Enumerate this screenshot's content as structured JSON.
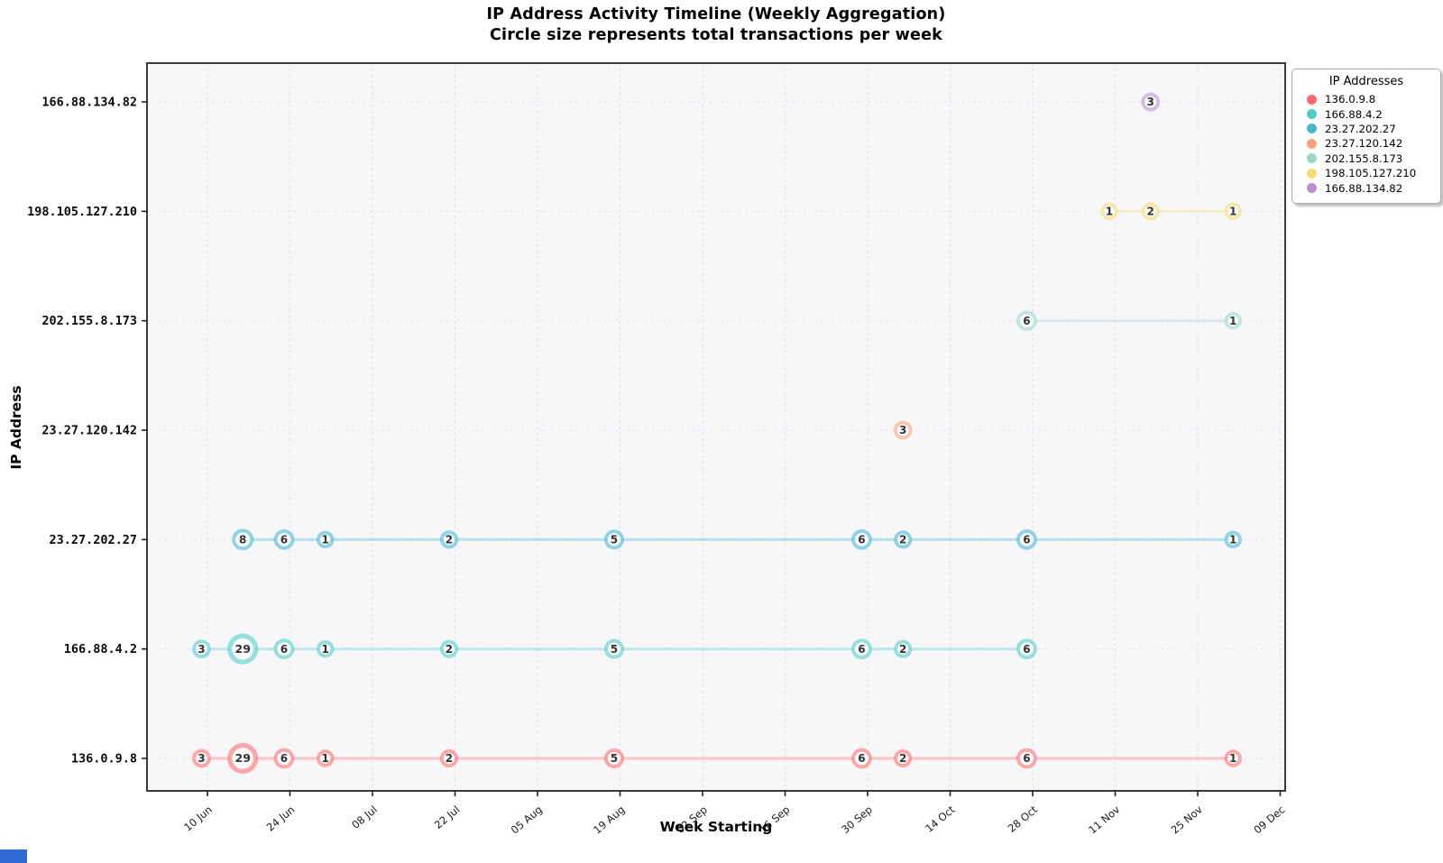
{
  "title": "IP Address Activity Timeline (Weekly Aggregation)",
  "subtitle": "Circle size represents total transactions per week",
  "xlabel": "Week Starting",
  "ylabel": "IP Address",
  "legend": {
    "title": "IP Addresses",
    "entries": [
      {
        "label": "136.0.9.8",
        "color": "#FF6B6B"
      },
      {
        "label": "166.88.4.2",
        "color": "#4ECDC4"
      },
      {
        "label": "23.27.202.27",
        "color": "#45B7D1"
      },
      {
        "label": "23.27.120.142",
        "color": "#FFA07A"
      },
      {
        "label": "202.155.8.173",
        "color": "#98D8C8"
      },
      {
        "label": "198.105.127.210",
        "color": "#F7DC6F"
      },
      {
        "label": "166.88.134.82",
        "color": "#BB8FCE"
      }
    ]
  },
  "chart_data": {
    "type": "scatter",
    "title": "IP Address Activity Timeline (Weekly Aggregation)",
    "subtitle": "Circle size represents total transactions per week",
    "xlabel": "Week Starting",
    "ylabel": "IP Address",
    "grid": true,
    "legend_position": "outside upper right",
    "x_ticks": [
      {
        "label": "10 Jun",
        "day": 0
      },
      {
        "label": "24 Jun",
        "day": 14
      },
      {
        "label": "08 Jul",
        "day": 28
      },
      {
        "label": "22 Jul",
        "day": 42
      },
      {
        "label": "05 Aug",
        "day": 56
      },
      {
        "label": "19 Aug",
        "day": 70
      },
      {
        "label": "02 Sep",
        "day": 84
      },
      {
        "label": "16 Sep",
        "day": 98
      },
      {
        "label": "30 Sep",
        "day": 112
      },
      {
        "label": "14 Oct",
        "day": 126
      },
      {
        "label": "28 Oct",
        "day": 140
      },
      {
        "label": "11 Nov",
        "day": 154
      },
      {
        "label": "25 Nov",
        "day": 168
      },
      {
        "label": "09 Dec",
        "day": 182
      }
    ],
    "y_categories_bottom_to_top": [
      "136.0.9.8",
      "166.88.4.2",
      "23.27.202.27",
      "23.27.120.142",
      "202.155.8.173",
      "198.105.127.210",
      "166.88.134.82"
    ],
    "series": [
      {
        "name": "136.0.9.8",
        "color": "#FF6B6B",
        "row": 0,
        "points": [
          {
            "week": "09 Jun",
            "day": -1,
            "value": 3
          },
          {
            "week": "16 Jun",
            "day": 6,
            "value": 29
          },
          {
            "week": "23 Jun",
            "day": 13,
            "value": 6
          },
          {
            "week": "30 Jun",
            "day": 20,
            "value": 1
          },
          {
            "week": "21 Jul",
            "day": 41,
            "value": 2
          },
          {
            "week": "18 Aug",
            "day": 69,
            "value": 5
          },
          {
            "week": "29 Sep",
            "day": 111,
            "value": 6
          },
          {
            "week": "06 Oct",
            "day": 118,
            "value": 2
          },
          {
            "week": "27 Oct",
            "day": 139,
            "value": 6
          },
          {
            "week": "01 Dec",
            "day": 174,
            "value": 1
          }
        ]
      },
      {
        "name": "166.88.4.2",
        "color": "#4ECDC4",
        "row": 1,
        "points": [
          {
            "week": "09 Jun",
            "day": -1,
            "value": 3
          },
          {
            "week": "16 Jun",
            "day": 6,
            "value": 29
          },
          {
            "week": "23 Jun",
            "day": 13,
            "value": 6
          },
          {
            "week": "30 Jun",
            "day": 20,
            "value": 1
          },
          {
            "week": "21 Jul",
            "day": 41,
            "value": 2
          },
          {
            "week": "18 Aug",
            "day": 69,
            "value": 5
          },
          {
            "week": "29 Sep",
            "day": 111,
            "value": 6
          },
          {
            "week": "06 Oct",
            "day": 118,
            "value": 2
          },
          {
            "week": "27 Oct",
            "day": 139,
            "value": 6
          }
        ]
      },
      {
        "name": "23.27.202.27",
        "color": "#45B7D1",
        "row": 2,
        "points": [
          {
            "week": "16 Jun",
            "day": 6,
            "value": 8
          },
          {
            "week": "23 Jun",
            "day": 13,
            "value": 6
          },
          {
            "week": "30 Jun",
            "day": 20,
            "value": 1
          },
          {
            "week": "21 Jul",
            "day": 41,
            "value": 2
          },
          {
            "week": "18 Aug",
            "day": 69,
            "value": 5
          },
          {
            "week": "29 Sep",
            "day": 111,
            "value": 6
          },
          {
            "week": "06 Oct",
            "day": 118,
            "value": 2
          },
          {
            "week": "27 Oct",
            "day": 139,
            "value": 6
          },
          {
            "week": "01 Dec",
            "day": 174,
            "value": 1
          }
        ]
      },
      {
        "name": "23.27.120.142",
        "color": "#FFA07A",
        "row": 3,
        "points": [
          {
            "week": "06 Oct",
            "day": 118,
            "value": 3
          }
        ]
      },
      {
        "name": "202.155.8.173",
        "color": "#98D8C8",
        "row": 4,
        "points": [
          {
            "week": "27 Oct",
            "day": 139,
            "value": 6
          },
          {
            "week": "01 Dec",
            "day": 174,
            "value": 1
          }
        ]
      },
      {
        "name": "198.105.127.210",
        "color": "#F7DC6F",
        "row": 5,
        "points": [
          {
            "week": "10 Nov",
            "day": 153,
            "value": 1
          },
          {
            "week": "17 Nov",
            "day": 160,
            "value": 2
          },
          {
            "week": "01 Dec",
            "day": 174,
            "value": 1
          }
        ]
      },
      {
        "name": "166.88.134.82",
        "color": "#BB8FCE",
        "row": 6,
        "points": [
          {
            "week": "17 Nov",
            "day": 160,
            "value": 3
          }
        ]
      }
    ]
  },
  "misc": {
    "corner_accent_color": "#2e6bd3"
  }
}
